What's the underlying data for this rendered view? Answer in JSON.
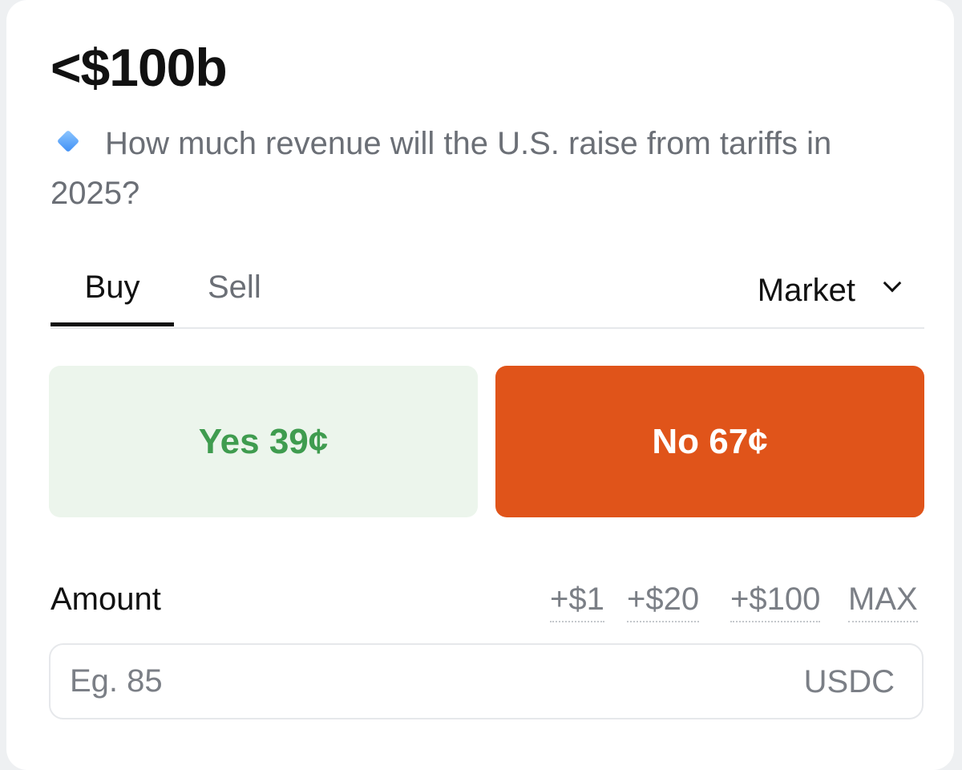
{
  "market": {
    "title": "<$100b",
    "question": "How much revenue will the U.S. raise from tariffs in 2025?",
    "question_icon": "diamond-icon"
  },
  "tabs": {
    "buy": "Buy",
    "sell": "Sell",
    "active": "Buy"
  },
  "order_type": {
    "selected": "Market"
  },
  "outcomes": {
    "yes_label": "Yes 39¢",
    "no_label": "No 67¢",
    "yes_color": "#3f9c4f",
    "yes_bg": "#ecf5ec",
    "no_bg": "#e0541a"
  },
  "amount": {
    "label": "Amount",
    "quick_add": [
      "+$1",
      "+$20",
      "+$100",
      "MAX"
    ],
    "value": "",
    "placeholder": "Eg. 85",
    "currency": "USDC"
  }
}
